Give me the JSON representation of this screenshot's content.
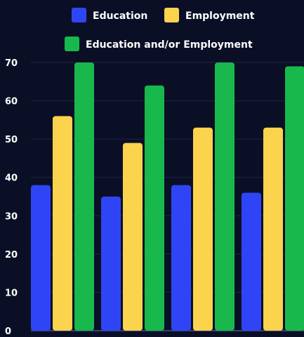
{
  "chart_data": {
    "type": "bar",
    "categories": [
      "",
      "",
      "",
      ""
    ],
    "series": [
      {
        "name": "Education",
        "values": [
          38,
          35,
          38,
          36
        ],
        "color": "#2f45f5"
      },
      {
        "name": "Employment",
        "values": [
          56,
          49,
          53,
          53
        ],
        "color": "#fcd34d"
      },
      {
        "name": "Education and/or Employment",
        "values": [
          70,
          64,
          70,
          69
        ],
        "color": "#18b84c"
      }
    ],
    "yticks": [
      "0",
      "10",
      "20",
      "30",
      "40",
      "50",
      "60",
      "70"
    ],
    "ylim": [
      0,
      70
    ],
    "grid": true,
    "legend_position": "top",
    "title": "",
    "xlabel": "",
    "ylabel": ""
  },
  "colors": {
    "background": "#0b0f26",
    "gridline": "#1e2547",
    "axis": "#3a4370",
    "text": "#ffffff"
  }
}
